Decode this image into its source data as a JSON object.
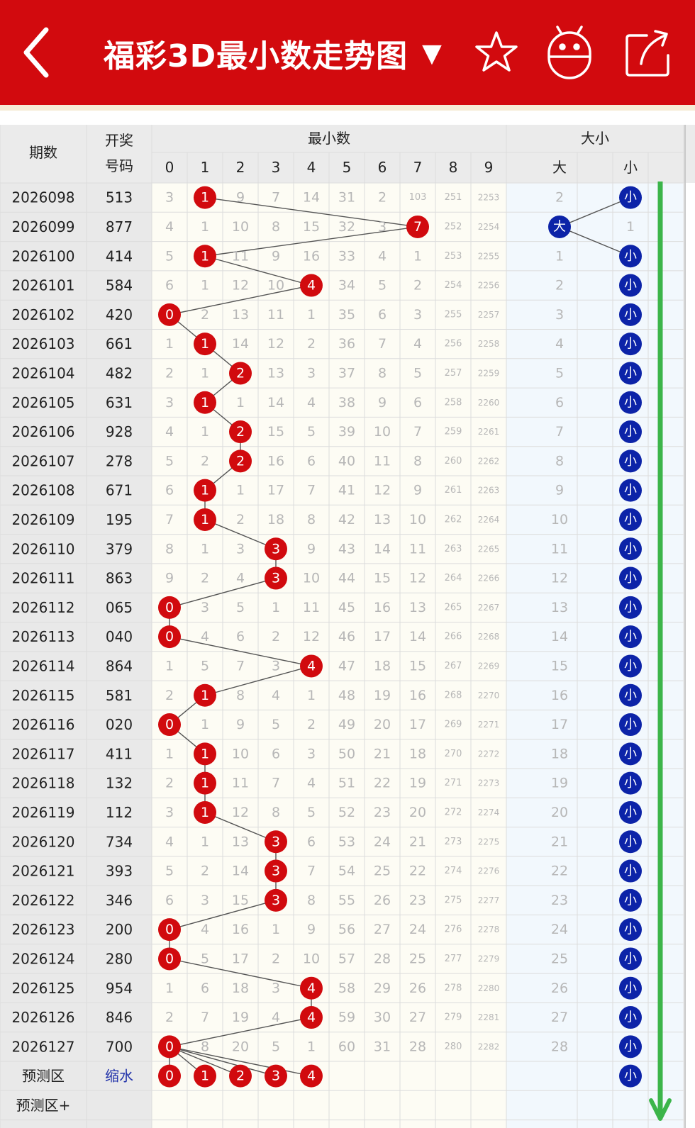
{
  "header": {
    "title": "福彩3D最小数走势图",
    "dropdown_caret": "▼",
    "back_icon": "chevron-left-icon",
    "star_icon": "star-outline-icon",
    "robot_icon": "android-robot-icon",
    "share_icon": "share-box-icon"
  },
  "table": {
    "headers": {
      "period": "期数",
      "number_line1": "开奖",
      "number_line2": "号码",
      "min_group": "最小数",
      "min_digits": [
        "0",
        "1",
        "2",
        "3",
        "4",
        "5",
        "6",
        "7",
        "8",
        "9"
      ],
      "size_group": "大小",
      "size_big": "大",
      "size_small": "小"
    },
    "colors": {
      "red_ball": "#d10a0e",
      "blue_ball": "#0c23a8",
      "green_arrow": "#3cb54a",
      "header_red": "#d20a0e"
    },
    "rows": [
      {
        "period": "2026098",
        "number": "513",
        "min": 1,
        "miss": [
          3,
          1,
          9,
          7,
          14,
          31,
          2,
          103,
          251,
          2253
        ],
        "size": "小",
        "big_miss": 2,
        "small_miss": 0
      },
      {
        "period": "2026099",
        "number": "877",
        "min": 7,
        "miss": [
          4,
          1,
          10,
          8,
          15,
          32,
          3,
          7,
          252,
          2254
        ],
        "size": "大",
        "big_miss": 0,
        "small_miss": 1
      },
      {
        "period": "2026100",
        "number": "414",
        "min": 1,
        "miss": [
          5,
          1,
          11,
          9,
          16,
          33,
          4,
          1,
          253,
          2255
        ],
        "size": "小",
        "big_miss": 1,
        "small_miss": 0
      },
      {
        "period": "2026101",
        "number": "584",
        "min": 4,
        "miss": [
          6,
          1,
          12,
          10,
          4,
          34,
          5,
          2,
          254,
          2256
        ],
        "size": "小",
        "big_miss": 2,
        "small_miss": 0
      },
      {
        "period": "2026102",
        "number": "420",
        "min": 0,
        "miss": [
          0,
          2,
          13,
          11,
          1,
          35,
          6,
          3,
          255,
          2257
        ],
        "size": "小",
        "big_miss": 3,
        "small_miss": 0
      },
      {
        "period": "2026103",
        "number": "661",
        "min": 1,
        "miss": [
          1,
          1,
          14,
          12,
          2,
          36,
          7,
          4,
          256,
          2258
        ],
        "size": "小",
        "big_miss": 4,
        "small_miss": 0
      },
      {
        "period": "2026104",
        "number": "482",
        "min": 2,
        "miss": [
          2,
          1,
          2,
          13,
          3,
          37,
          8,
          5,
          257,
          2259
        ],
        "size": "小",
        "big_miss": 5,
        "small_miss": 0
      },
      {
        "period": "2026105",
        "number": "631",
        "min": 1,
        "miss": [
          3,
          1,
          1,
          14,
          4,
          38,
          9,
          6,
          258,
          2260
        ],
        "size": "小",
        "big_miss": 6,
        "small_miss": 0
      },
      {
        "period": "2026106",
        "number": "928",
        "min": 2,
        "miss": [
          4,
          1,
          2,
          15,
          5,
          39,
          10,
          7,
          259,
          2261
        ],
        "size": "小",
        "big_miss": 7,
        "small_miss": 0
      },
      {
        "period": "2026107",
        "number": "278",
        "min": 2,
        "miss": [
          5,
          2,
          2,
          16,
          6,
          40,
          11,
          8,
          260,
          2262
        ],
        "size": "小",
        "big_miss": 8,
        "small_miss": 0
      },
      {
        "period": "2026108",
        "number": "671",
        "min": 1,
        "miss": [
          6,
          1,
          1,
          17,
          7,
          41,
          12,
          9,
          261,
          2263
        ],
        "size": "小",
        "big_miss": 9,
        "small_miss": 0
      },
      {
        "period": "2026109",
        "number": "195",
        "min": 1,
        "miss": [
          7,
          1,
          2,
          18,
          8,
          42,
          13,
          10,
          262,
          2264
        ],
        "size": "小",
        "big_miss": 10,
        "small_miss": 0
      },
      {
        "period": "2026110",
        "number": "379",
        "min": 3,
        "miss": [
          8,
          1,
          3,
          3,
          9,
          43,
          14,
          11,
          263,
          2265
        ],
        "size": "小",
        "big_miss": 11,
        "small_miss": 0
      },
      {
        "period": "2026111",
        "number": "863",
        "min": 3,
        "miss": [
          9,
          2,
          4,
          3,
          10,
          44,
          15,
          12,
          264,
          2266
        ],
        "size": "小",
        "big_miss": 12,
        "small_miss": 0
      },
      {
        "period": "2026112",
        "number": "065",
        "min": 0,
        "miss": [
          0,
          3,
          5,
          1,
          11,
          45,
          16,
          13,
          265,
          2267
        ],
        "size": "小",
        "big_miss": 13,
        "small_miss": 0
      },
      {
        "period": "2026113",
        "number": "040",
        "min": 0,
        "miss": [
          0,
          4,
          6,
          2,
          12,
          46,
          17,
          14,
          266,
          2268
        ],
        "size": "小",
        "big_miss": 14,
        "small_miss": 0
      },
      {
        "period": "2026114",
        "number": "864",
        "min": 4,
        "miss": [
          1,
          5,
          7,
          3,
          4,
          47,
          18,
          15,
          267,
          2269
        ],
        "size": "小",
        "big_miss": 15,
        "small_miss": 0
      },
      {
        "period": "2026115",
        "number": "581",
        "min": 1,
        "miss": [
          2,
          1,
          8,
          4,
          1,
          48,
          19,
          16,
          268,
          2270
        ],
        "size": "小",
        "big_miss": 16,
        "small_miss": 0
      },
      {
        "period": "2026116",
        "number": "020",
        "min": 0,
        "miss": [
          0,
          1,
          9,
          5,
          2,
          49,
          20,
          17,
          269,
          2271
        ],
        "size": "小",
        "big_miss": 17,
        "small_miss": 0
      },
      {
        "period": "2026117",
        "number": "411",
        "min": 1,
        "miss": [
          1,
          1,
          10,
          6,
          3,
          50,
          21,
          18,
          270,
          2272
        ],
        "size": "小",
        "big_miss": 18,
        "small_miss": 0
      },
      {
        "period": "2026118",
        "number": "132",
        "min": 1,
        "miss": [
          2,
          1,
          11,
          7,
          4,
          51,
          22,
          19,
          271,
          2273
        ],
        "size": "小",
        "big_miss": 19,
        "small_miss": 0
      },
      {
        "period": "2026119",
        "number": "112",
        "min": 1,
        "miss": [
          3,
          1,
          12,
          8,
          5,
          52,
          23,
          20,
          272,
          2274
        ],
        "size": "小",
        "big_miss": 20,
        "small_miss": 0
      },
      {
        "period": "2026120",
        "number": "734",
        "min": 3,
        "miss": [
          4,
          1,
          13,
          3,
          6,
          53,
          24,
          21,
          273,
          2275
        ],
        "size": "小",
        "big_miss": 21,
        "small_miss": 0
      },
      {
        "period": "2026121",
        "number": "393",
        "min": 3,
        "miss": [
          5,
          2,
          14,
          3,
          7,
          54,
          25,
          22,
          274,
          2276
        ],
        "size": "小",
        "big_miss": 22,
        "small_miss": 0
      },
      {
        "period": "2026122",
        "number": "346",
        "min": 3,
        "miss": [
          6,
          3,
          15,
          3,
          8,
          55,
          26,
          23,
          275,
          2277
        ],
        "size": "小",
        "big_miss": 23,
        "small_miss": 0
      },
      {
        "period": "2026123",
        "number": "200",
        "min": 0,
        "miss": [
          0,
          4,
          16,
          1,
          9,
          56,
          27,
          24,
          276,
          2278
        ],
        "size": "小",
        "big_miss": 24,
        "small_miss": 0
      },
      {
        "period": "2026124",
        "number": "280",
        "min": 0,
        "miss": [
          0,
          5,
          17,
          2,
          10,
          57,
          28,
          25,
          277,
          2279
        ],
        "size": "小",
        "big_miss": 25,
        "small_miss": 0
      },
      {
        "period": "2026125",
        "number": "954",
        "min": 4,
        "miss": [
          1,
          6,
          18,
          3,
          4,
          58,
          29,
          26,
          278,
          2280
        ],
        "size": "小",
        "big_miss": 26,
        "small_miss": 0
      },
      {
        "period": "2026126",
        "number": "846",
        "min": 4,
        "miss": [
          2,
          7,
          19,
          4,
          4,
          59,
          30,
          27,
          279,
          2281
        ],
        "size": "小",
        "big_miss": 27,
        "small_miss": 0
      },
      {
        "period": "2026127",
        "number": "700",
        "min": 0,
        "miss": [
          0,
          8,
          20,
          5,
          1,
          60,
          31,
          28,
          280,
          2282
        ],
        "size": "小",
        "big_miss": 28,
        "small_miss": 0
      }
    ],
    "prediction": {
      "label": "预测区",
      "mode": "缩水",
      "digits": [
        0,
        1,
        2,
        3,
        4
      ],
      "size": "小"
    },
    "prediction_plus_label": "预测区+"
  }
}
